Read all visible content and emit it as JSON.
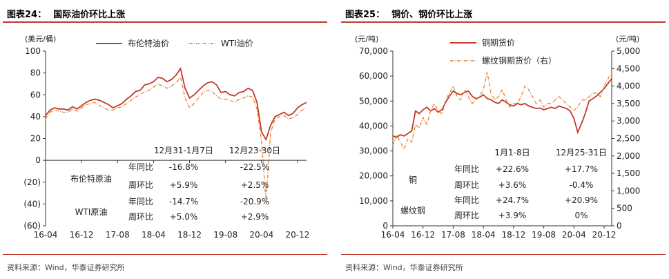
{
  "left": {
    "title_num": "图表24：",
    "title_text": "国际油价环比上涨",
    "source": "资料来源：Wind，华泰证券研究所",
    "chart_data": {
      "type": "line",
      "ylabel": "(美元/桶)",
      "ylim": [
        -60,
        100
      ],
      "yticks": [
        "100",
        "80",
        "60",
        "40",
        "20",
        "0",
        "(20)",
        "(40)",
        "(60)"
      ],
      "yticks_values": [
        100,
        80,
        60,
        40,
        20,
        0,
        -20,
        -40,
        -60
      ],
      "xticks": [
        "16-04",
        "16-12",
        "17-08",
        "18-04",
        "18-12",
        "19-08",
        "20-04",
        "20-12"
      ],
      "x_index": [
        0,
        8,
        16,
        24,
        32,
        40,
        48,
        56
      ],
      "grid": false,
      "legend_position": "top",
      "colors": {
        "brent": "#c0392b",
        "wti": "#e67e22"
      },
      "series": [
        {
          "name": "布伦特油价",
          "style": "solid",
          "values": [
            41,
            46,
            48,
            47,
            47,
            46,
            49,
            47,
            50,
            53,
            55,
            56,
            55,
            53,
            51,
            48,
            50,
            52,
            56,
            59,
            63,
            64,
            69,
            70,
            72,
            76,
            75,
            72,
            74,
            78,
            84,
            66,
            57,
            60,
            64,
            68,
            71,
            72,
            69,
            62,
            63,
            60,
            59,
            62,
            63,
            66,
            64,
            53,
            26,
            19,
            32,
            40,
            42,
            44,
            41,
            43,
            48,
            51,
            53
          ]
        },
        {
          "name": "WTI油价",
          "style": "dashdot",
          "values": [
            38,
            44,
            46,
            45,
            44,
            44,
            47,
            45,
            48,
            51,
            52,
            53,
            50,
            48,
            46,
            46,
            48,
            49,
            52,
            55,
            58,
            60,
            63,
            64,
            67,
            70,
            68,
            66,
            68,
            71,
            76,
            57,
            48,
            52,
            57,
            62,
            64,
            63,
            59,
            56,
            56,
            55,
            53,
            56,
            57,
            59,
            58,
            47,
            18,
            -37,
            25,
            38,
            40,
            41,
            38,
            39,
            42,
            46,
            48
          ]
        }
      ]
    },
    "table": {
      "col_headers": [
        "12月31-1月7日",
        "12月23-30日"
      ],
      "rows": [
        {
          "group": "布伦特原油",
          "metric": "年同比",
          "v1": "-16.8%",
          "v2": "-22.5%"
        },
        {
          "group": "",
          "metric": "周环比",
          "v1": "+5.9%",
          "v2": "+2.5%"
        },
        {
          "group": "WTI原油",
          "metric": "年同比",
          "v1": "-14.7%",
          "v2": "-20.9%"
        },
        {
          "group": "",
          "metric": "周环比",
          "v1": "+5.0%",
          "v2": "+2.9%"
        }
      ]
    }
  },
  "right": {
    "title_num": "图表25：",
    "title_text": "铜价、钢价环比上涨",
    "source": "资料来源：Wind，华泰证券研究所",
    "chart_data": {
      "type": "line",
      "ylabel": "(元/吨)",
      "y2label": "(元/吨)",
      "ylim": [
        0,
        70000
      ],
      "y2lim": [
        0,
        5000
      ],
      "yticks": [
        "70,000",
        "60,000",
        "50,000",
        "40,000",
        "30,000",
        "20,000",
        "10,000",
        "0"
      ],
      "yticks_values": [
        70000,
        60000,
        50000,
        40000,
        30000,
        20000,
        10000,
        0
      ],
      "y2ticks": [
        "5,000",
        "4,500",
        "4,000",
        "3,500",
        "3,000",
        "2,500",
        "2,000",
        "1,500",
        "1,000",
        "500",
        "0"
      ],
      "y2ticks_values": [
        5000,
        4500,
        4000,
        3500,
        3000,
        2500,
        2000,
        1500,
        1000,
        500,
        0
      ],
      "xticks": [
        "16-04",
        "16-12",
        "17-08",
        "18-04",
        "18-12",
        "19-08",
        "20-04",
        "20-12"
      ],
      "x_index": [
        0,
        8,
        16,
        24,
        32,
        40,
        48,
        56
      ],
      "grid": false,
      "legend_position": "top",
      "colors": {
        "copper": "#c0392b",
        "rebar": "#e67e22"
      },
      "series": [
        {
          "name": "铜期货价",
          "axis": "left",
          "style": "solid",
          "values": [
            36000,
            35500,
            36500,
            36000,
            37000,
            38000,
            46000,
            45000,
            46500,
            47500,
            46000,
            47000,
            45500,
            46500,
            49500,
            52000,
            54000,
            53000,
            52500,
            53500,
            54000,
            52000,
            51000,
            51500,
            52500,
            51000,
            50500,
            49500,
            49000,
            50500,
            49500,
            48500,
            48000,
            49000,
            48500,
            49000,
            48000,
            47500,
            47000,
            47200,
            46500,
            47000,
            47500,
            47000,
            48000,
            47500,
            47000,
            46000,
            43000,
            37500,
            41000,
            45000,
            50000,
            51000,
            52000,
            53500,
            55000,
            57000,
            59000
          ]
        },
        {
          "name": "螺纹钢期货价（右）",
          "axis": "right",
          "style": "dashdot",
          "values": [
            2300,
            2600,
            2400,
            2200,
            2500,
            2400,
            2900,
            2800,
            3100,
            2900,
            3300,
            3500,
            3300,
            3200,
            3600,
            3800,
            4000,
            3700,
            3600,
            3900,
            3700,
            3500,
            3600,
            3700,
            3900,
            4400,
            3800,
            3600,
            3700,
            3900,
            3600,
            3400,
            3500,
            3500,
            3700,
            4000,
            3900,
            3700,
            3500,
            3600,
            3400,
            3500,
            3500,
            3600,
            3700,
            3600,
            3500,
            3400,
            3300,
            3400,
            3600,
            3600,
            3700,
            3800,
            3800,
            3700,
            4000,
            4200,
            4400
          ]
        }
      ]
    },
    "table": {
      "col_headers": [
        "1月1-8日",
        "12月25-31日"
      ],
      "rows": [
        {
          "group": "铜",
          "metric": "年同比",
          "v1": "+22.6%",
          "v2": "+17.7%"
        },
        {
          "group": "",
          "metric": "周环比",
          "v1": "+3.6%",
          "v2": "-0.4%"
        },
        {
          "group": "螺纹钢",
          "metric": "年同比",
          "v1": "+24.7%",
          "v2": "+20.9%"
        },
        {
          "group": "",
          "metric": "周环比",
          "v1": "+3.9%",
          "v2": "0%"
        }
      ]
    }
  }
}
